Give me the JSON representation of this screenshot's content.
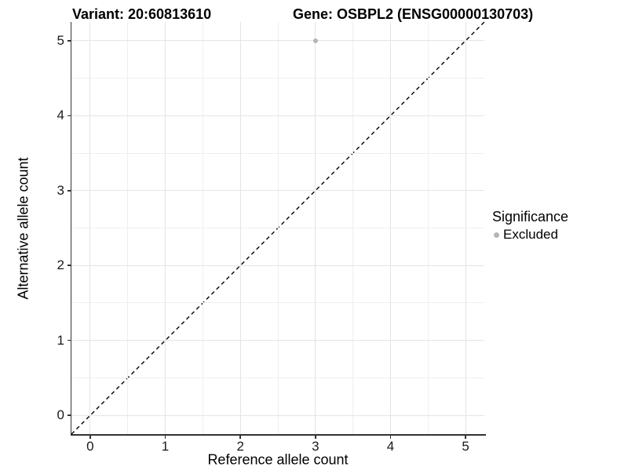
{
  "figure": {
    "title_variant": "Variant: 20:60813610",
    "title_gene": "Gene: OSBPL2 (ENSG00000130703)"
  },
  "chart_data": {
    "type": "scatter",
    "title": "Variant: 20:60813610   Gene: OSBPL2 (ENSG00000130703)",
    "xlabel": "Reference allele count",
    "ylabel": "Alternative allele count",
    "xlim": [
      -0.25,
      5.25
    ],
    "ylim": [
      -0.25,
      5.25
    ],
    "x_ticks": [
      0,
      1,
      2,
      3,
      4,
      5
    ],
    "y_ticks": [
      0,
      1,
      2,
      3,
      4,
      5
    ],
    "grid": true,
    "minor_grid": true,
    "series": [
      {
        "name": "Excluded",
        "marker": "circle",
        "color": "#b5b5b5",
        "points": [
          {
            "x": 3,
            "y": 5
          }
        ]
      }
    ],
    "reference_line": {
      "kind": "identity",
      "equation": "y = x",
      "style": "dashed",
      "color": "#000000"
    },
    "legend": {
      "title": "Significance",
      "position": "right",
      "entries": [
        {
          "label": "Excluded",
          "color": "#b5b5b5",
          "marker": "circle"
        }
      ]
    }
  },
  "colors": {
    "background": "#ffffff",
    "grid_major": "#e4e4e4",
    "grid_minor": "#efefef",
    "axis_line": "#333333",
    "point": "#b5b5b5",
    "text": "#000000"
  }
}
